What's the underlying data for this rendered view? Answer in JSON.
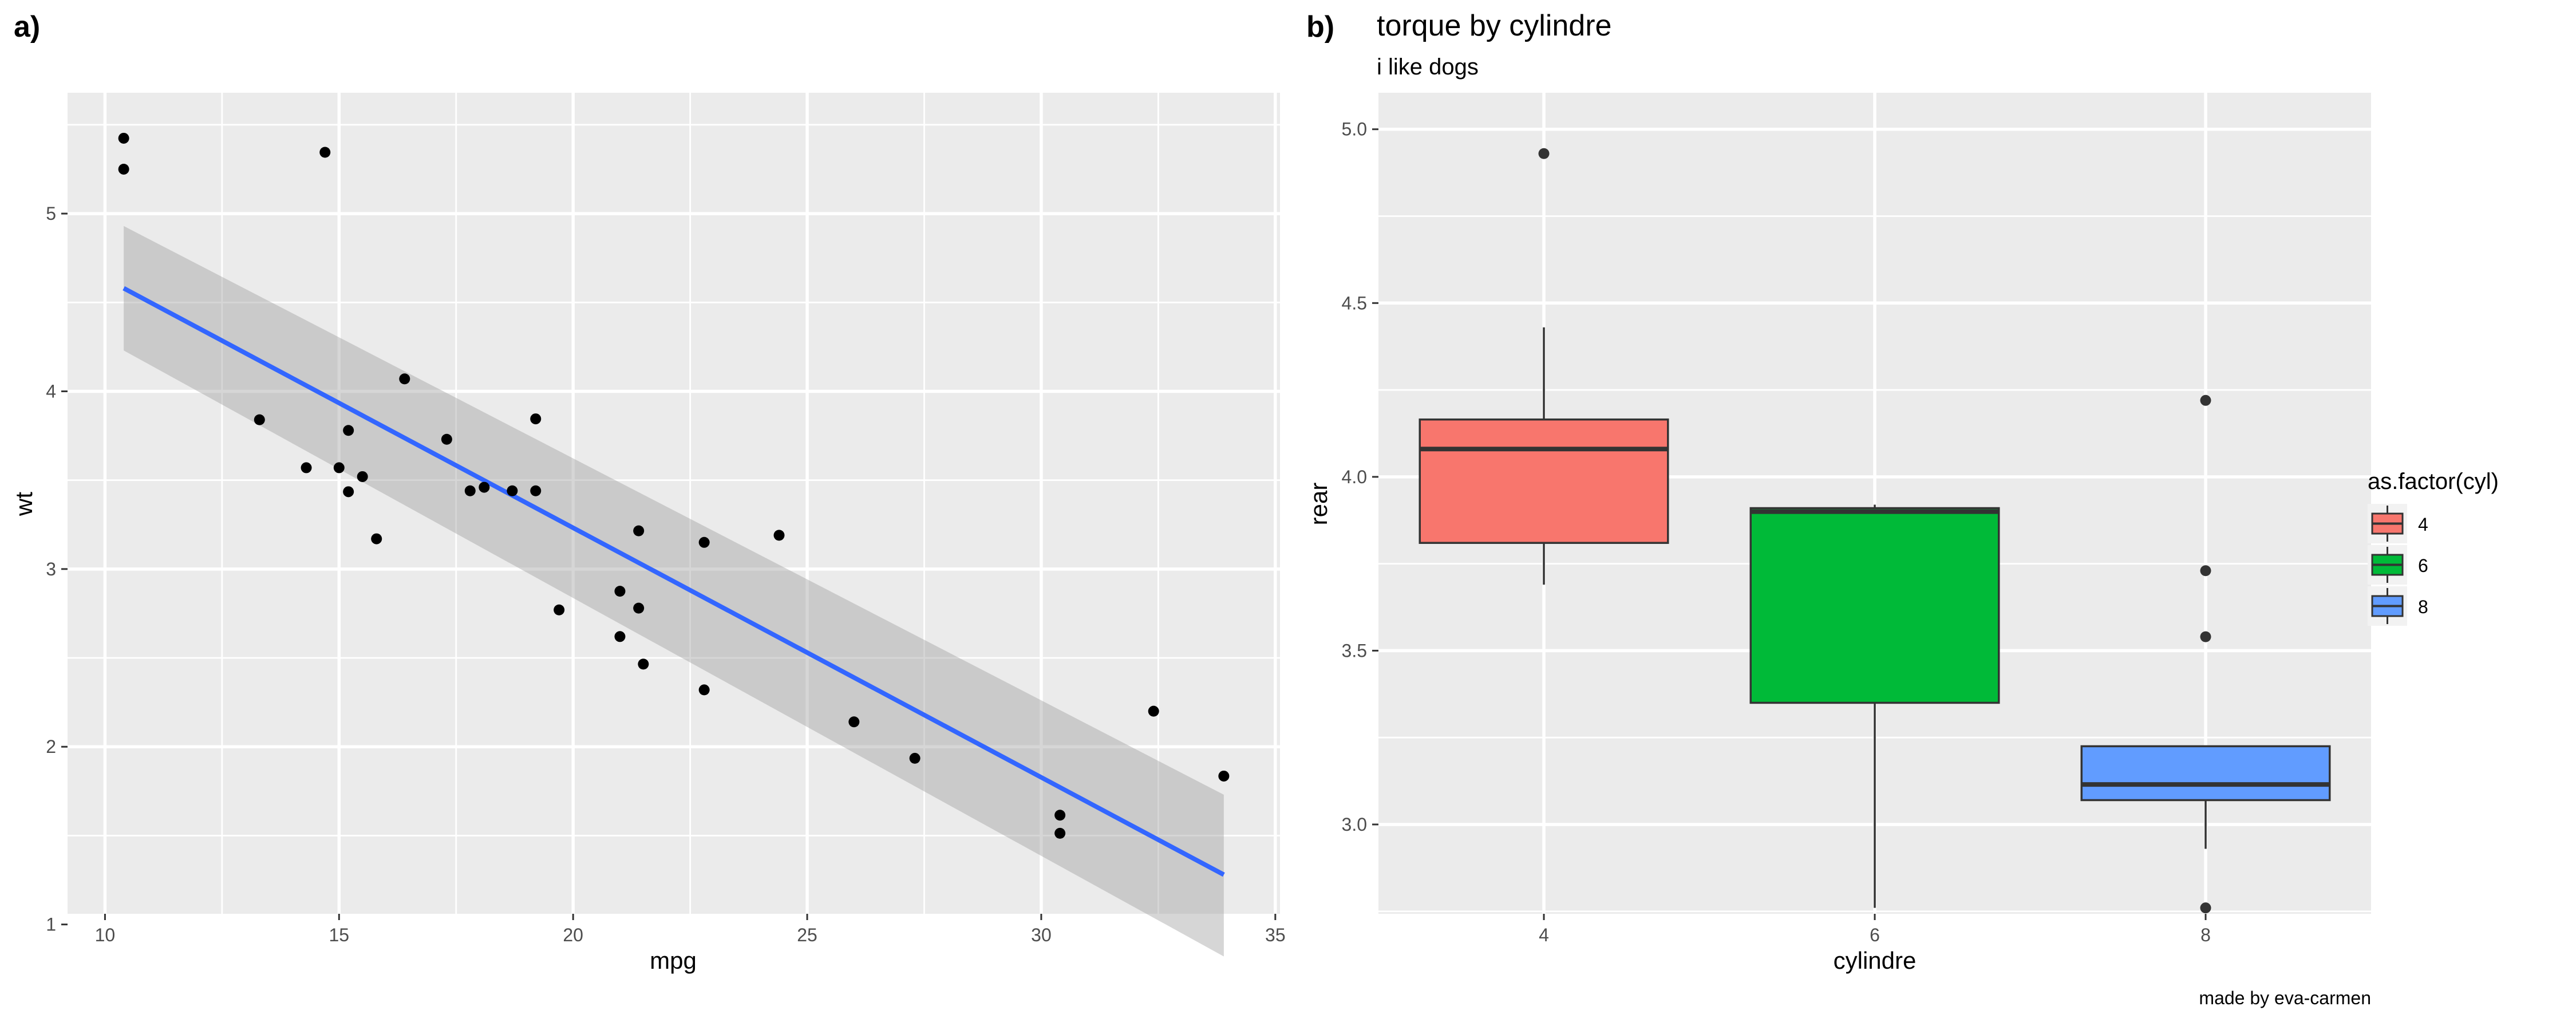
{
  "chart_data": [
    {
      "tag": "a)",
      "type": "scatter",
      "xlabel": "mpg",
      "ylabel": "wt",
      "xlim": [
        9.2,
        35.1
      ],
      "ylim": [
        1.06,
        5.68
      ],
      "x_ticks": [
        10,
        15,
        20,
        25,
        30,
        35
      ],
      "y_ticks": [
        1,
        2,
        3,
        4,
        5
      ],
      "grid": true,
      "points": [
        {
          "x": 10.4,
          "y": 5.424
        },
        {
          "x": 10.4,
          "y": 5.25
        },
        {
          "x": 14.7,
          "y": 5.345
        },
        {
          "x": 13.3,
          "y": 3.84
        },
        {
          "x": 14.3,
          "y": 3.57
        },
        {
          "x": 15.0,
          "y": 3.57
        },
        {
          "x": 15.2,
          "y": 3.78
        },
        {
          "x": 15.2,
          "y": 3.435
        },
        {
          "x": 15.5,
          "y": 3.52
        },
        {
          "x": 15.8,
          "y": 3.17
        },
        {
          "x": 16.4,
          "y": 4.07
        },
        {
          "x": 17.3,
          "y": 3.73
        },
        {
          "x": 17.8,
          "y": 3.44
        },
        {
          "x": 18.1,
          "y": 3.46
        },
        {
          "x": 18.7,
          "y": 3.44
        },
        {
          "x": 19.2,
          "y": 3.44
        },
        {
          "x": 19.2,
          "y": 3.845
        },
        {
          "x": 19.7,
          "y": 2.77
        },
        {
          "x": 21.0,
          "y": 2.62
        },
        {
          "x": 21.0,
          "y": 2.875
        },
        {
          "x": 21.4,
          "y": 3.215
        },
        {
          "x": 21.4,
          "y": 2.78
        },
        {
          "x": 21.5,
          "y": 2.465
        },
        {
          "x": 22.8,
          "y": 2.32
        },
        {
          "x": 22.8,
          "y": 3.15
        },
        {
          "x": 24.4,
          "y": 3.19
        },
        {
          "x": 26.0,
          "y": 2.14
        },
        {
          "x": 27.3,
          "y": 1.935
        },
        {
          "x": 30.4,
          "y": 1.615
        },
        {
          "x": 30.4,
          "y": 1.513
        },
        {
          "x": 32.4,
          "y": 2.2
        },
        {
          "x": 33.9,
          "y": 1.835
        }
      ],
      "fit_line": {
        "x": [
          10.4,
          33.9
        ],
        "y": [
          4.58,
          1.28
        ],
        "color": "#3366FF"
      },
      "confidence_band": {
        "x": [
          10.4,
          33.9
        ],
        "upper": [
          4.93,
          1.73
        ],
        "lower": [
          4.23,
          0.82
        ],
        "color": "#999999"
      }
    },
    {
      "tag": "b)",
      "type": "box",
      "title": "torque by cylindre",
      "subtitle": "i like dogs",
      "xlabel": "cylindre",
      "ylabel": "rear",
      "caption": "made by eva-carmen",
      "categories": [
        "4",
        "6",
        "8"
      ],
      "ylim": [
        2.743,
        5.105
      ],
      "y_ticks": [
        "3.0",
        "3.5",
        "4.0",
        "4.5",
        "5.0"
      ],
      "grid": true,
      "legend": {
        "title": "as.factor(cyl)",
        "position": "right",
        "labels": [
          "4",
          "6",
          "8"
        ]
      },
      "series": [
        {
          "name": "4",
          "color": "#F8766D",
          "min": 3.69,
          "q1": 3.81,
          "median": 4.08,
          "q3": 4.165,
          "max": 4.43,
          "outliers": [
            4.93
          ]
        },
        {
          "name": "6",
          "color": "#00BA38",
          "min": 2.76,
          "q1": 3.35,
          "median": 3.9,
          "q3": 3.91,
          "max": 3.92,
          "outliers": []
        },
        {
          "name": "8",
          "color": "#619CFF",
          "min": 2.93,
          "q1": 3.07,
          "median": 3.115,
          "q3": 3.225,
          "max": 3.225,
          "outliers": [
            4.22,
            3.73,
            3.54,
            2.76
          ]
        }
      ]
    }
  ]
}
